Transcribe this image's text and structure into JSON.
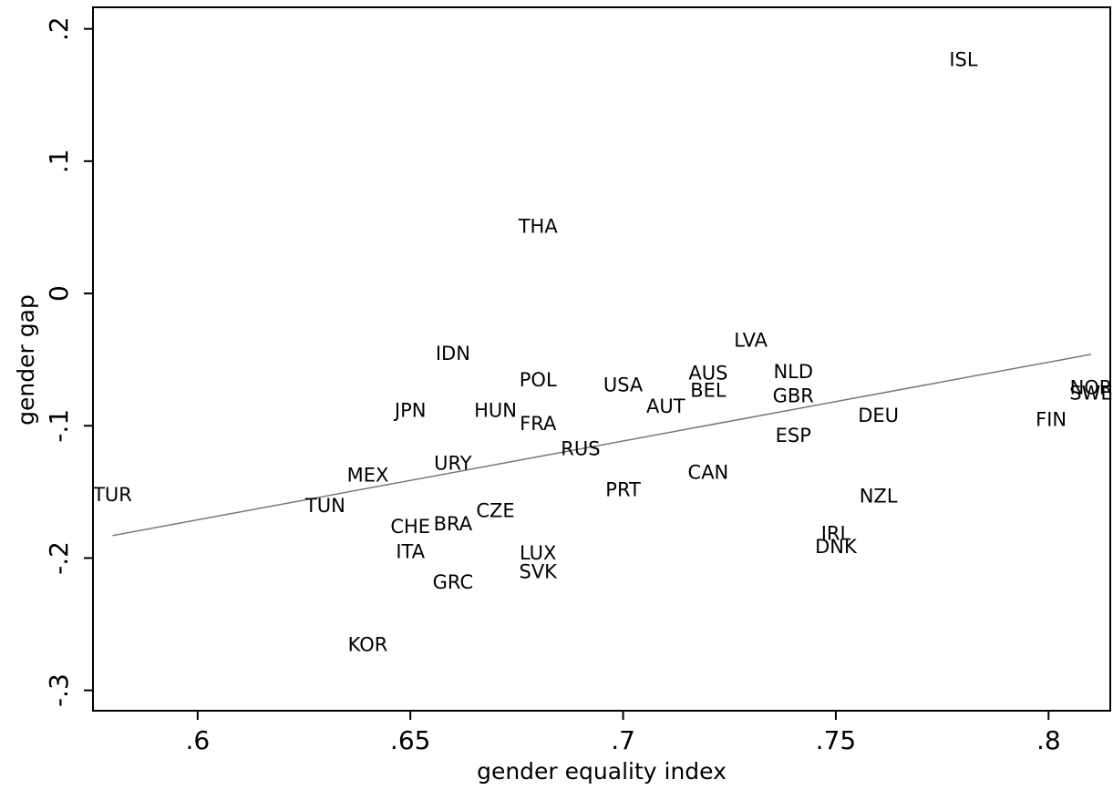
{
  "chart_data": {
    "type": "scatter",
    "xlabel": "gender equality index",
    "ylabel": "gender gap",
    "labels": [
      "ISL",
      "THA",
      "LVA",
      "IDN",
      "POL",
      "USA",
      "AUS",
      "BEL",
      "NLD",
      "GBR",
      "AUT",
      "JPN",
      "HUN",
      "FRA",
      "DEU",
      "FIN",
      "NOR",
      "SWE",
      "ESP",
      "RUS",
      "URY",
      "MEX",
      "CAN",
      "TUR",
      "PRT",
      "NZL",
      "TUN",
      "CZE",
      "BRA",
      "CHE",
      "IRL",
      "DNK",
      "ITA",
      "LUX",
      "SVK",
      "GRC",
      "KOR"
    ],
    "x": [
      0.78,
      0.68,
      0.73,
      0.66,
      0.68,
      0.7,
      0.72,
      0.72,
      0.74,
      0.74,
      0.71,
      0.65,
      0.67,
      0.68,
      0.76,
      0.8006,
      0.81,
      0.81,
      0.74,
      0.69,
      0.66,
      0.64,
      0.72,
      0.58,
      0.7,
      0.76,
      0.63,
      0.67,
      0.66,
      0.65,
      0.75,
      0.75,
      0.65,
      0.68,
      0.68,
      0.66,
      0.64
    ],
    "y": [
      0.176,
      0.05,
      -0.036,
      -0.046,
      -0.066,
      -0.07,
      -0.061,
      -0.074,
      -0.06,
      -0.078,
      -0.086,
      -0.089,
      -0.089,
      -0.099,
      -0.093,
      -0.096,
      -0.072,
      -0.076,
      -0.108,
      -0.118,
      -0.129,
      -0.138,
      -0.136,
      -0.153,
      -0.149,
      -0.154,
      -0.161,
      -0.165,
      -0.175,
      -0.177,
      -0.182,
      -0.192,
      -0.196,
      -0.197,
      -0.211,
      -0.219,
      -0.266
    ],
    "fit": {
      "x": [
        0.58,
        0.81
      ],
      "y": [
        -0.183,
        -0.046
      ],
      "color": "#777777"
    },
    "color": "#000000",
    "xlim": [
      0.5754,
      0.8145
    ],
    "ylim": [
      -0.3154,
      0.2163
    ],
    "xticks": [
      {
        "value": 0.6,
        "label": ".6"
      },
      {
        "value": 0.65,
        "label": ".65"
      },
      {
        "value": 0.7,
        "label": ".7"
      },
      {
        "value": 0.75,
        "label": ".75"
      },
      {
        "value": 0.8,
        "label": ".8"
      }
    ],
    "yticks": [
      {
        "value": -0.3,
        "label": "-.3"
      },
      {
        "value": -0.2,
        "label": "-.2"
      },
      {
        "value": -0.1,
        "label": "-.1"
      },
      0,
      {
        "value": 0.1,
        "label": ".1"
      },
      {
        "value": 0.2,
        "label": ".2"
      }
    ]
  }
}
